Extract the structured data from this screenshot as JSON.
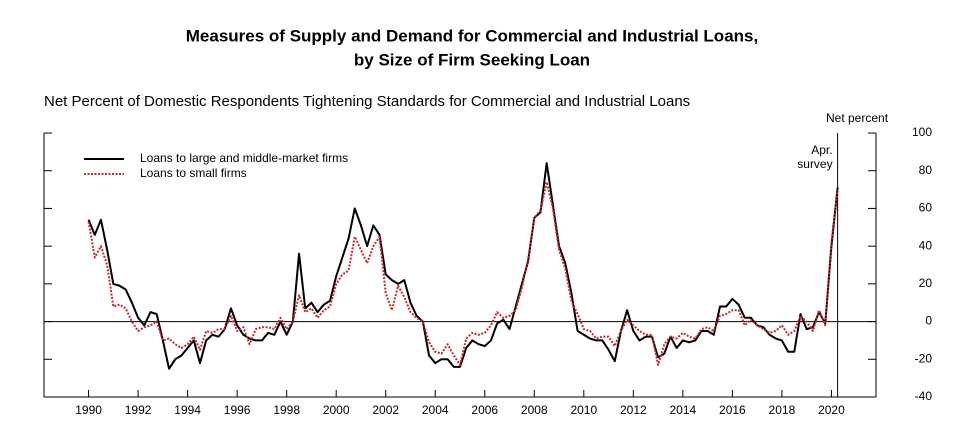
{
  "chart_data": {
    "type": "line",
    "title": [
      "Measures of Supply and Demand for Commercial and Industrial Loans,",
      "by Size of Firm Seeking Loan"
    ],
    "subtitle": "Net Percent of Domestic Respondents Tightening Standards for Commercial and Industrial Loans",
    "y_label": "Net percent",
    "annotation": [
      "Apr.",
      "survey"
    ],
    "legend": "upper left",
    "x": [
      1990,
      1990.25,
      1990.5,
      1990.75,
      1991,
      1991.25,
      1991.5,
      1991.75,
      1992,
      1992.25,
      1992.5,
      1992.75,
      1993,
      1993.25,
      1993.5,
      1993.75,
      1994,
      1994.25,
      1994.5,
      1994.75,
      1995,
      1995.25,
      1995.5,
      1995.75,
      1996,
      1996.25,
      1996.5,
      1996.75,
      1997,
      1997.25,
      1997.5,
      1997.75,
      1998,
      1998.25,
      1998.5,
      1998.75,
      1999,
      1999.25,
      1999.5,
      1999.75,
      2000,
      2000.25,
      2000.5,
      2000.75,
      2001,
      2001.25,
      2001.5,
      2001.75,
      2002,
      2002.25,
      2002.5,
      2002.75,
      2003,
      2003.25,
      2003.5,
      2003.75,
      2004,
      2004.25,
      2004.5,
      2004.75,
      2005,
      2005.25,
      2005.5,
      2005.75,
      2006,
      2006.25,
      2006.5,
      2006.75,
      2007,
      2007.25,
      2007.5,
      2007.75,
      2008,
      2008.25,
      2008.5,
      2008.75,
      2009,
      2009.25,
      2009.5,
      2009.75,
      2010,
      2010.25,
      2010.5,
      2010.75,
      2011,
      2011.25,
      2011.5,
      2011.75,
      2012,
      2012.25,
      2012.5,
      2012.75,
      2013,
      2013.25,
      2013.5,
      2013.75,
      2014,
      2014.25,
      2014.5,
      2014.75,
      2015,
      2015.25,
      2015.5,
      2015.75,
      2016,
      2016.25,
      2016.5,
      2016.75,
      2017,
      2017.25,
      2017.5,
      2017.75,
      2018,
      2018.25,
      2018.5,
      2018.75,
      2019,
      2019.25,
      2019.5,
      2019.75,
      2020,
      2020.25
    ],
    "series": [
      {
        "name": "Loans to large and middle-market firms",
        "color": "#000000",
        "dashed": false,
        "values": [
          54,
          46,
          54,
          38,
          20,
          19,
          17,
          10,
          2,
          -2,
          5,
          4,
          -10,
          -25,
          -20,
          -18,
          -14,
          -10,
          -22,
          -10,
          -7,
          -8,
          -4,
          7,
          -2,
          -7,
          -9,
          -10,
          -10,
          -6,
          -7,
          0,
          -7,
          0,
          36,
          7,
          10,
          5,
          9,
          11,
          24,
          34,
          44,
          60,
          51,
          40,
          51,
          46,
          25,
          22,
          20,
          22,
          10,
          3,
          0,
          -18,
          -22,
          -20,
          -20,
          -24,
          -24,
          -14,
          -10,
          -12,
          -13,
          -10,
          -1,
          1,
          -4,
          8,
          20,
          32,
          55,
          58,
          84,
          62,
          40,
          31,
          15,
          -5,
          -7,
          -9,
          -10,
          -10,
          -15,
          -21,
          -5,
          6,
          -5,
          -10,
          -8,
          -8,
          -19,
          -17,
          -8,
          -14,
          -10,
          -11,
          -10,
          -5,
          -5,
          -7,
          8,
          8,
          12,
          9,
          2,
          2,
          -2,
          -3,
          -7,
          -9,
          -10,
          -16,
          -16,
          4,
          -4,
          -3,
          5,
          -1,
          40,
          71
        ]
      },
      {
        "name": "Loans to small firms",
        "color": "#c8282d",
        "dashed": true,
        "values": [
          53,
          34,
          40,
          30,
          8,
          9,
          7,
          0,
          -5,
          -3,
          -2,
          0,
          -10,
          -9,
          -12,
          -14,
          -12,
          -8,
          -15,
          -5,
          -6,
          -4,
          -4,
          3,
          -5,
          -3,
          -12,
          -4,
          -3,
          -3,
          -4,
          2,
          -4,
          0,
          14,
          5,
          7,
          2,
          6,
          8,
          20,
          25,
          27,
          45,
          38,
          31,
          40,
          45,
          15,
          6,
          19,
          13,
          5,
          2,
          0,
          -11,
          -16,
          -17,
          -12,
          -18,
          -23,
          -9,
          -6,
          -7,
          -6,
          -2,
          5,
          2,
          3,
          6,
          18,
          33,
          55,
          59,
          74,
          60,
          38,
          28,
          11,
          4,
          -4,
          -5,
          -9,
          -8,
          -8,
          -13,
          -5,
          1,
          -2,
          -5,
          -7,
          -7,
          -23,
          -12,
          -8,
          -9,
          -6,
          -8,
          -9,
          -4,
          -3,
          -5,
          3,
          4,
          6,
          6,
          -2,
          1,
          -2,
          -4,
          -6,
          -5,
          -2,
          -7,
          -5,
          3,
          0,
          -5,
          6,
          -2,
          42,
          70
        ]
      }
    ],
    "xlim": [
      1988.2,
      2021.8
    ],
    "xticks": [
      1990,
      1992,
      1994,
      1996,
      1998,
      2000,
      2002,
      2004,
      2006,
      2008,
      2010,
      2012,
      2014,
      2016,
      2018,
      2020
    ],
    "ylim": [
      -40,
      100
    ],
    "yticks": [
      100,
      80,
      60,
      40,
      20,
      0,
      -20,
      -40
    ]
  }
}
